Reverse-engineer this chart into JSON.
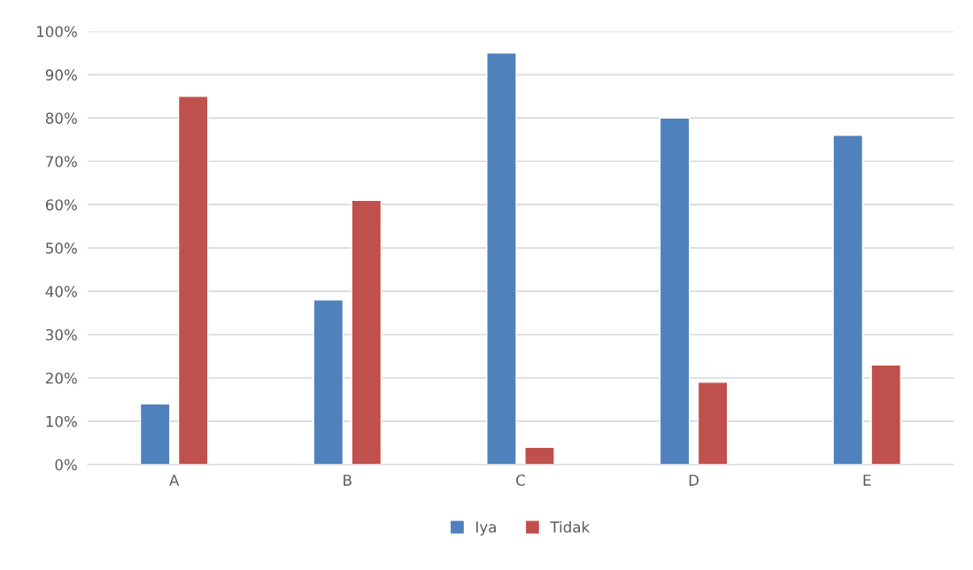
{
  "chart_data": {
    "type": "bar",
    "categories": [
      "A",
      "B",
      "C",
      "D",
      "E"
    ],
    "series": [
      {
        "name": "Iya",
        "color": "#4f81bd",
        "values": [
          14,
          38,
          95,
          80,
          76
        ]
      },
      {
        "name": "Tidak",
        "color": "#c0504d",
        "values": [
          85,
          61,
          4,
          19,
          23
        ]
      }
    ],
    "ylim": [
      0,
      100
    ],
    "yticks": [
      {
        "value": 0,
        "label": "0%"
      },
      {
        "value": 10,
        "label": "10%"
      },
      {
        "value": 20,
        "label": "20%"
      },
      {
        "value": 30,
        "label": "30%"
      },
      {
        "value": 40,
        "label": "40%"
      },
      {
        "value": 50,
        "label": "50%"
      },
      {
        "value": 60,
        "label": "60%"
      },
      {
        "value": 70,
        "label": "70%"
      },
      {
        "value": 80,
        "label": "80%"
      },
      {
        "value": 90,
        "label": "90%"
      },
      {
        "value": 100,
        "label": "100%"
      }
    ],
    "grid": "y",
    "legend": "bottom"
  }
}
